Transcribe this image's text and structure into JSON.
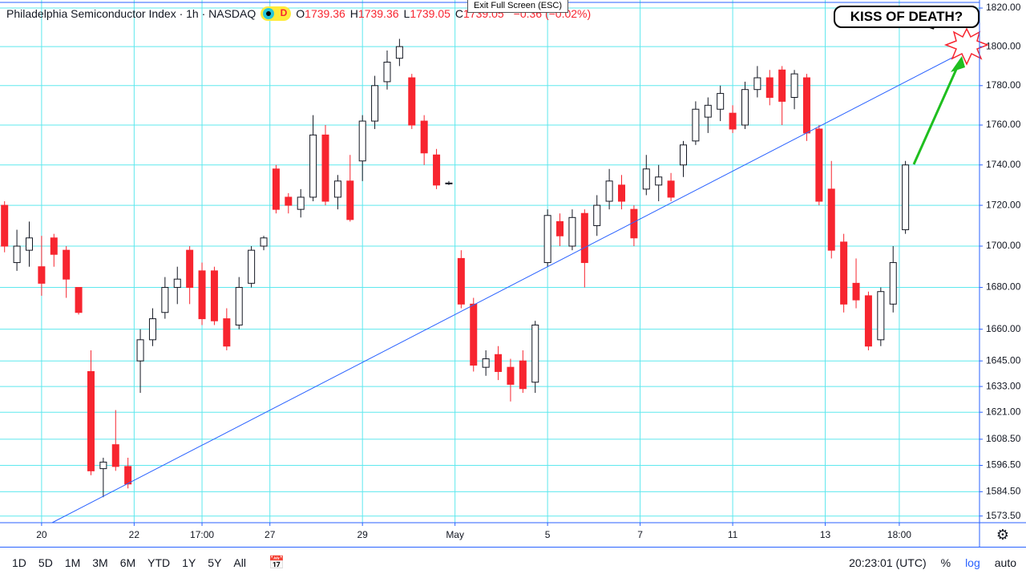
{
  "header": {
    "title": "Philadelphia Semiconductor Index · 1h · NASDAQ",
    "badge": "D",
    "ohlc": [
      {
        "key": "O",
        "value": "1739.36"
      },
      {
        "key": "H",
        "value": "1739.36"
      },
      {
        "key": "L",
        "value": "1739.05"
      },
      {
        "key": "C",
        "value": "1739.05"
      }
    ],
    "change": "−0.36 (−0.02%)"
  },
  "exit_button": "Exit Full Screen (ESC)",
  "annotation": "KISS OF DEATH?",
  "toolbar": {
    "ranges": [
      "1D",
      "5D",
      "1M",
      "3M",
      "6M",
      "YTD",
      "1Y",
      "5Y",
      "All"
    ],
    "clock": "20:23:01 (UTC)",
    "percent": "%",
    "log": "log",
    "auto": "auto"
  },
  "chart_data": {
    "type": "candlestick",
    "log_scale": true,
    "grid": true,
    "up_color": "#ffffff",
    "down_color": "#f7252f",
    "open": [
      1720,
      1692,
      1698,
      1690,
      1704,
      1698,
      1680,
      1640,
      1595,
      1606,
      1596,
      1645,
      1655,
      1668,
      1680,
      1698,
      1688,
      1688,
      1665,
      1662,
      1682,
      1700,
      1738,
      1724,
      1718,
      1724,
      1755,
      1724,
      1732,
      1742,
      1762,
      1782,
      1794,
      1784,
      1762,
      1745,
      1731,
      1694,
      1672,
      1642,
      1648,
      1642,
      1645,
      1635,
      1692,
      1712,
      1700,
      1716,
      1710,
      1722,
      1730,
      1718,
      1728,
      1730,
      1732,
      1740,
      1752,
      1764,
      1768,
      1766,
      1760,
      1778,
      1784,
      1788,
      1774,
      1784,
      1758,
      1728,
      1702,
      1682,
      1676,
      1655,
      1672,
      1708
    ],
    "high": [
      1722,
      1708,
      1712,
      1705,
      1706,
      1700,
      1680,
      1650,
      1600,
      1622,
      1600,
      1660,
      1670,
      1685,
      1690,
      1700,
      1692,
      1690,
      1670,
      1685,
      1700,
      1705,
      1740,
      1726,
      1728,
      1765,
      1760,
      1735,
      1745,
      1765,
      1785,
      1798,
      1804,
      1786,
      1765,
      1748,
      1732,
      1698,
      1675,
      1650,
      1652,
      1646,
      1650,
      1664,
      1718,
      1716,
      1718,
      1718,
      1725,
      1738,
      1735,
      1720,
      1745,
      1740,
      1736,
      1752,
      1772,
      1774,
      1780,
      1770,
      1782,
      1790,
      1788,
      1790,
      1788,
      1786,
      1760,
      1742,
      1706,
      1694,
      1678,
      1680,
      1700,
      1742
    ],
    "low": [
      1697,
      1688,
      1690,
      1676,
      1690,
      1675,
      1667,
      1592,
      1582,
      1594,
      1586,
      1630,
      1652,
      1665,
      1672,
      1672,
      1662,
      1662,
      1650,
      1660,
      1680,
      1698,
      1716,
      1716,
      1714,
      1722,
      1720,
      1718,
      1712,
      1732,
      1758,
      1778,
      1790,
      1758,
      1740,
      1728,
      1730,
      1670,
      1640,
      1638,
      1636,
      1626,
      1630,
      1630,
      1690,
      1700,
      1698,
      1680,
      1705,
      1718,
      1718,
      1700,
      1725,
      1722,
      1722,
      1734,
      1750,
      1756,
      1762,
      1756,
      1758,
      1774,
      1770,
      1760,
      1768,
      1752,
      1720,
      1694,
      1668,
      1670,
      1650,
      1652,
      1668,
      1706
    ],
    "close": [
      1700,
      1700,
      1704,
      1682,
      1696,
      1684,
      1668,
      1594,
      1598,
      1596,
      1588,
      1655,
      1665,
      1680,
      1684,
      1680,
      1665,
      1664,
      1652,
      1680,
      1698,
      1704,
      1718,
      1720,
      1724,
      1755,
      1722,
      1732,
      1713,
      1762,
      1780,
      1792,
      1800,
      1760,
      1746,
      1730,
      1731,
      1672,
      1643,
      1646,
      1640,
      1634,
      1632,
      1662,
      1715,
      1705,
      1714,
      1692,
      1720,
      1732,
      1722,
      1704,
      1738,
      1734,
      1724,
      1750,
      1768,
      1770,
      1776,
      1758,
      1778,
      1784,
      1774,
      1772,
      1786,
      1756,
      1722,
      1698,
      1672,
      1674,
      1652,
      1678,
      1692,
      1740
    ],
    "ylim": [
      1570.5,
      1824.2
    ],
    "yticks": [
      {
        "value": 1820,
        "label": "1820.00"
      },
      {
        "value": 1800,
        "label": "1800.00"
      },
      {
        "value": 1780,
        "label": "1780.00"
      },
      {
        "value": 1760,
        "label": "1760.00"
      },
      {
        "value": 1740,
        "label": "1740.00"
      },
      {
        "value": 1720,
        "label": "1720.00"
      },
      {
        "value": 1700,
        "label": "1700.00"
      },
      {
        "value": 1680,
        "label": "1680.00"
      },
      {
        "value": 1660,
        "label": "1660.00"
      },
      {
        "value": 1645,
        "label": "1645.00"
      },
      {
        "value": 1633,
        "label": "1633.00"
      },
      {
        "value": 1621,
        "label": "1621.00"
      },
      {
        "value": 1608.5,
        "label": "1608.50"
      },
      {
        "value": 1596.5,
        "label": "1596.50"
      },
      {
        "value": 1584.5,
        "label": "1584.50"
      },
      {
        "value": 1573.5,
        "label": "1573.50"
      }
    ],
    "xlim": [
      -0.37,
      79
    ],
    "xticks": [
      {
        "value": 3,
        "label": "20"
      },
      {
        "value": 10.5,
        "label": "22"
      },
      {
        "value": 16,
        "label": "17:00"
      },
      {
        "value": 21.5,
        "label": "27"
      },
      {
        "value": 29,
        "label": "29"
      },
      {
        "value": 36.5,
        "label": "May"
      },
      {
        "value": 44,
        "label": "5"
      },
      {
        "value": 51.5,
        "label": "7"
      },
      {
        "value": 59,
        "label": "11"
      },
      {
        "value": 66.5,
        "label": "13"
      },
      {
        "value": 72.5,
        "label": "18:00"
      }
    ]
  }
}
